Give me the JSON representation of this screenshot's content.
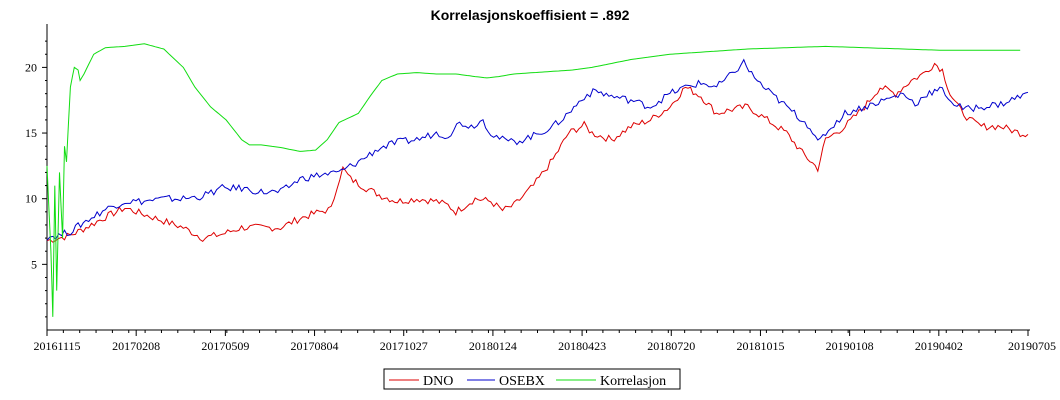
{
  "chart_data": {
    "type": "line",
    "title": "Korrelasjonskoeffisient =  .892",
    "xlabel": "",
    "ylabel": "",
    "ylim": [
      0,
      23
    ],
    "grid": false,
    "legend_position": "bottom-center",
    "x_ticks": [
      "20161115",
      "20170208",
      "20170509",
      "20170804",
      "20171027",
      "20180124",
      "20180423",
      "20180720",
      "20181015",
      "20190108",
      "20190402",
      "20190705"
    ],
    "y_ticks": [
      5,
      10,
      15,
      20
    ],
    "series": [
      {
        "name": "DNO",
        "color": "#dd0000",
        "points": [
          [
            0,
            6.8
          ],
          [
            0.3,
            7.0
          ],
          [
            0.6,
            7.2
          ],
          [
            1.0,
            7.8
          ],
          [
            1.5,
            8.6
          ],
          [
            2.0,
            9.3
          ],
          [
            2.5,
            8.8
          ],
          [
            3.0,
            8.3
          ],
          [
            3.5,
            7.8
          ],
          [
            4.0,
            7.0
          ],
          [
            4.5,
            7.3
          ],
          [
            5.0,
            7.8
          ],
          [
            5.5,
            7.8
          ],
          [
            6.0,
            7.8
          ],
          [
            6.5,
            8.5
          ],
          [
            7.0,
            9.0
          ],
          [
            7.3,
            9.2
          ],
          [
            7.45,
            11.0
          ],
          [
            7.6,
            12.3
          ],
          [
            7.8,
            11.5
          ],
          [
            8.2,
            10.8
          ],
          [
            8.6,
            10.2
          ],
          [
            9.0,
            9.8
          ],
          [
            9.5,
            10.0
          ],
          [
            10.0,
            9.8
          ],
          [
            10.3,
            9.5
          ],
          [
            10.5,
            9.0
          ],
          [
            11.0,
            10.0
          ],
          [
            11.4,
            9.8
          ],
          [
            11.7,
            9.1
          ],
          [
            12.0,
            9.5
          ],
          [
            12.5,
            11.0
          ],
          [
            13.0,
            13.0
          ],
          [
            13.4,
            15.0
          ],
          [
            13.8,
            15.6
          ],
          [
            14.0,
            15.0
          ],
          [
            14.5,
            14.5
          ],
          [
            15.0,
            15.5
          ],
          [
            15.5,
            16.0
          ],
          [
            16.0,
            17.0
          ],
          [
            16.4,
            18.5
          ],
          [
            16.8,
            17.8
          ],
          [
            17.2,
            16.5
          ],
          [
            17.6,
            16.8
          ],
          [
            18.0,
            17.0
          ],
          [
            18.5,
            16.0
          ],
          [
            19.0,
            15.0
          ],
          [
            19.4,
            13.5
          ],
          [
            19.8,
            12.3
          ],
          [
            20.0,
            14.5
          ],
          [
            20.5,
            15.5
          ],
          [
            21.0,
            17.0
          ],
          [
            21.4,
            18.5
          ],
          [
            21.8,
            18.0
          ],
          [
            22.2,
            19.0
          ],
          [
            22.5,
            19.5
          ],
          [
            22.8,
            20.3
          ],
          [
            23.0,
            19.8
          ],
          [
            23.2,
            18.0
          ],
          [
            23.4,
            17.0
          ],
          [
            23.7,
            16.0
          ],
          [
            24.0,
            15.5
          ],
          [
            24.5,
            15.5
          ],
          [
            25.0,
            15.0
          ],
          [
            25.2,
            14.9
          ]
        ]
      },
      {
        "name": "OSEBX",
        "color": "#0000cc",
        "points": [
          [
            0,
            7.1
          ],
          [
            0.3,
            7.2
          ],
          [
            0.6,
            7.5
          ],
          [
            1.0,
            8.3
          ],
          [
            1.5,
            9.2
          ],
          [
            2.0,
            9.8
          ],
          [
            2.5,
            9.8
          ],
          [
            3.0,
            10.0
          ],
          [
            3.5,
            10.0
          ],
          [
            4.0,
            10.2
          ],
          [
            4.5,
            10.8
          ],
          [
            5.0,
            10.8
          ],
          [
            5.5,
            10.5
          ],
          [
            6.0,
            10.5
          ],
          [
            6.5,
            11.5
          ],
          [
            7.0,
            11.8
          ],
          [
            7.5,
            12.0
          ],
          [
            8.0,
            12.8
          ],
          [
            8.5,
            13.8
          ],
          [
            9.0,
            14.3
          ],
          [
            9.5,
            14.5
          ],
          [
            10.0,
            15.0
          ],
          [
            10.3,
            14.8
          ],
          [
            10.6,
            15.8
          ],
          [
            10.9,
            15.5
          ],
          [
            11.2,
            16.0
          ],
          [
            11.4,
            15.0
          ],
          [
            11.7,
            14.5
          ],
          [
            12.0,
            14.3
          ],
          [
            12.5,
            14.8
          ],
          [
            13.0,
            15.5
          ],
          [
            13.4,
            16.5
          ],
          [
            13.8,
            17.8
          ],
          [
            14.1,
            18.2
          ],
          [
            14.5,
            17.8
          ],
          [
            15.0,
            17.5
          ],
          [
            15.5,
            17.0
          ],
          [
            16.0,
            18.0
          ],
          [
            16.4,
            18.5
          ],
          [
            16.8,
            18.8
          ],
          [
            17.2,
            18.5
          ],
          [
            17.6,
            19.5
          ],
          [
            17.9,
            20.4
          ],
          [
            18.1,
            19.5
          ],
          [
            18.4,
            18.5
          ],
          [
            18.8,
            17.5
          ],
          [
            19.2,
            16.5
          ],
          [
            19.6,
            15.5
          ],
          [
            19.8,
            14.2
          ],
          [
            20.0,
            15.0
          ],
          [
            20.5,
            16.5
          ],
          [
            21.0,
            17.0
          ],
          [
            21.5,
            17.5
          ],
          [
            22.0,
            18.0
          ],
          [
            22.3,
            17.2
          ],
          [
            22.6,
            18.0
          ],
          [
            23.0,
            18.3
          ],
          [
            23.3,
            17.2
          ],
          [
            23.6,
            16.8
          ],
          [
            24.0,
            17.0
          ],
          [
            24.5,
            17.2
          ],
          [
            25.0,
            17.8
          ],
          [
            25.2,
            18.1
          ]
        ]
      },
      {
        "name": "Korrelasjon",
        "color": "#11dd11",
        "points": [
          [
            0,
            12.5
          ],
          [
            0.1,
            6.0
          ],
          [
            0.15,
            1.0
          ],
          [
            0.2,
            11.0
          ],
          [
            0.25,
            3.0
          ],
          [
            0.32,
            12.0
          ],
          [
            0.4,
            7.0
          ],
          [
            0.45,
            14.0
          ],
          [
            0.5,
            12.8
          ],
          [
            0.6,
            18.5
          ],
          [
            0.7,
            20.0
          ],
          [
            0.8,
            19.8
          ],
          [
            0.85,
            19.0
          ],
          [
            0.95,
            19.5
          ],
          [
            1.2,
            21.0
          ],
          [
            1.5,
            21.5
          ],
          [
            2.0,
            21.6
          ],
          [
            2.5,
            21.8
          ],
          [
            3.0,
            21.4
          ],
          [
            3.5,
            20.0
          ],
          [
            3.8,
            18.5
          ],
          [
            4.2,
            17.0
          ],
          [
            4.6,
            16.0
          ],
          [
            5.0,
            14.5
          ],
          [
            5.2,
            14.1
          ],
          [
            5.5,
            14.1
          ],
          [
            6.0,
            13.9
          ],
          [
            6.5,
            13.6
          ],
          [
            6.9,
            13.7
          ],
          [
            7.2,
            14.5
          ],
          [
            7.5,
            15.8
          ],
          [
            8.0,
            16.5
          ],
          [
            8.3,
            17.8
          ],
          [
            8.6,
            19.0
          ],
          [
            9.0,
            19.5
          ],
          [
            9.5,
            19.6
          ],
          [
            10.0,
            19.5
          ],
          [
            10.5,
            19.5
          ],
          [
            11.0,
            19.3
          ],
          [
            11.3,
            19.2
          ],
          [
            11.6,
            19.3
          ],
          [
            12.0,
            19.5
          ],
          [
            12.5,
            19.6
          ],
          [
            13.0,
            19.7
          ],
          [
            13.5,
            19.8
          ],
          [
            14.0,
            20.0
          ],
          [
            14.5,
            20.3
          ],
          [
            15.0,
            20.6
          ],
          [
            15.5,
            20.8
          ],
          [
            16.0,
            21.0
          ],
          [
            17.0,
            21.2
          ],
          [
            18.0,
            21.4
          ],
          [
            19.0,
            21.5
          ],
          [
            20.0,
            21.6
          ],
          [
            21.0,
            21.5
          ],
          [
            22.0,
            21.4
          ],
          [
            23.0,
            21.3
          ],
          [
            24.0,
            21.3
          ],
          [
            25.0,
            21.3
          ]
        ]
      }
    ],
    "x_range": [
      0,
      25.2
    ]
  }
}
